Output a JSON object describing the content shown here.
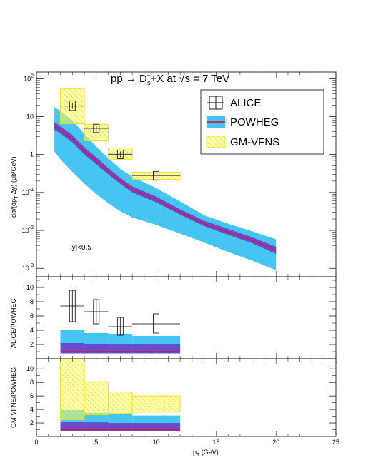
{
  "chart_data": {
    "type": "line",
    "title": "pp → D",
    "title_sup": "+",
    "title_sub": "s",
    "title_rest": "+X at ",
    "title_sqrt": "√s",
    "title_end": " = 7 TeV",
    "xlabel": "p",
    "xlabel_sub": "T",
    "xlabel_unit": " (GeV)",
    "ylabel_top": "dσ/(dp",
    "ylabel_top_sub": "T",
    "ylabel_top_rest": " Δy) (μb/GeV)",
    "ylabel_mid": "ALICE/POWHEG",
    "ylabel_bot": "GM-VFNS/POWHEG",
    "annotation": "|y|<0.5",
    "xlim": [
      0,
      25
    ],
    "x_ticks": [
      "0",
      "5",
      "10",
      "15",
      "20",
      "25"
    ],
    "top_panel": {
      "ylim_log": [
        0.0006,
        150
      ],
      "y_ticks": [
        {
          "v": 0.001,
          "b": "10",
          "e": "-3"
        },
        {
          "v": 0.01,
          "b": "10",
          "e": "-2"
        },
        {
          "v": 0.1,
          "b": "10",
          "e": "-1"
        },
        {
          "v": 1,
          "b": "1",
          "e": ""
        },
        {
          "v": 10,
          "b": "10",
          "e": ""
        },
        {
          "v": 100,
          "b": "10",
          "e": "2"
        }
      ],
      "powheg_central": {
        "x": [
          1.5,
          2,
          3,
          4,
          5,
          6,
          7,
          8,
          10,
          12,
          14,
          16,
          18,
          20
        ],
        "y": [
          5.8,
          4.5,
          2.6,
          1.25,
          0.68,
          0.36,
          0.2,
          0.12,
          0.065,
          0.03,
          0.015,
          0.009,
          0.0055,
          0.003
        ]
      },
      "powheg_inner": {
        "x": [
          1.5,
          2,
          3,
          4,
          5,
          6,
          7,
          8,
          10,
          12,
          14,
          16,
          18,
          20
        ],
        "lo": [
          4.5,
          3.6,
          2.1,
          1.0,
          0.55,
          0.3,
          0.17,
          0.1,
          0.055,
          0.026,
          0.013,
          0.0077,
          0.0046,
          0.0024
        ],
        "hi": [
          7.2,
          5.6,
          3.3,
          1.55,
          0.85,
          0.44,
          0.24,
          0.145,
          0.078,
          0.036,
          0.018,
          0.011,
          0.0066,
          0.0037
        ]
      },
      "powheg_outer": {
        "x": [
          1.5,
          2,
          3,
          4,
          5,
          6,
          7,
          8,
          10,
          12,
          14,
          16,
          18,
          20
        ],
        "lo": [
          1.2,
          0.75,
          0.35,
          0.17,
          0.09,
          0.052,
          0.032,
          0.022,
          0.014,
          0.0082,
          0.0048,
          0.0027,
          0.0016,
          0.0009
        ],
        "hi": [
          18,
          14,
          8,
          3.5,
          1.6,
          0.8,
          0.42,
          0.26,
          0.13,
          0.058,
          0.025,
          0.015,
          0.0095,
          0.0058
        ]
      },
      "alice": [
        {
          "xlo": 2,
          "xhi": 4,
          "x": 3,
          "y": 19,
          "ylo": 14.5,
          "yhi": 26,
          "statlo": 16,
          "stathi": 23
        },
        {
          "xlo": 4,
          "xhi": 6,
          "x": 5,
          "y": 4.9,
          "ylo": 3.8,
          "yhi": 6.3,
          "statlo": 4.2,
          "stathi": 5.7
        },
        {
          "xlo": 6,
          "xhi": 8,
          "x": 7,
          "y": 1.02,
          "ylo": 0.78,
          "yhi": 1.3,
          "statlo": 0.85,
          "stathi": 1.2
        },
        {
          "xlo": 8,
          "xhi": 12,
          "x": 10,
          "y": 0.28,
          "ylo": 0.21,
          "yhi": 0.36,
          "statlo": 0.23,
          "stathi": 0.33
        }
      ],
      "gmvfns": [
        {
          "xlo": 2,
          "xhi": 4,
          "lo": 6.5,
          "hi": 55
        },
        {
          "xlo": 4,
          "xhi": 6,
          "lo": 2.4,
          "hi": 6.3
        },
        {
          "xlo": 6,
          "xhi": 8,
          "lo": 0.75,
          "hi": 1.5
        },
        {
          "xlo": 8,
          "xhi": 12,
          "lo": 0.22,
          "hi": 0.34
        }
      ]
    },
    "mid_panel": {
      "ylim": [
        0,
        11.5
      ],
      "y_ticks": [
        "2",
        "4",
        "6",
        "8",
        "10"
      ],
      "alice": [
        {
          "xlo": 2,
          "xhi": 4,
          "x": 3,
          "y": 7.4,
          "ylo": 5.2,
          "yhi": 9.6
        },
        {
          "xlo": 4,
          "xhi": 6,
          "x": 5,
          "y": 6.6,
          "ylo": 4.9,
          "yhi": 8.3
        },
        {
          "xlo": 6,
          "xhi": 8,
          "x": 7,
          "y": 4.5,
          "ylo": 3.3,
          "yhi": 5.8
        },
        {
          "xlo": 8,
          "xhi": 12,
          "x": 10,
          "y": 4.9,
          "ylo": 3.6,
          "yhi": 6.3
        }
      ],
      "outer": [
        {
          "xlo": 2,
          "xhi": 4,
          "lo": 1.0,
          "hi": 4.0
        },
        {
          "xlo": 4,
          "xhi": 6,
          "lo": 1.0,
          "hi": 3.6
        },
        {
          "xlo": 6,
          "xhi": 8,
          "lo": 1.0,
          "hi": 3.4
        },
        {
          "xlo": 8,
          "xhi": 12,
          "lo": 1.0,
          "hi": 3.2
        }
      ],
      "inner": [
        {
          "xlo": 2,
          "xhi": 4,
          "lo": 0.75,
          "hi": 2.2
        },
        {
          "xlo": 4,
          "xhi": 6,
          "lo": 0.75,
          "hi": 2.1
        },
        {
          "xlo": 6,
          "xhi": 8,
          "lo": 0.75,
          "hi": 2.0
        },
        {
          "xlo": 8,
          "xhi": 12,
          "lo": 0.75,
          "hi": 2.0
        }
      ]
    },
    "bot_panel": {
      "ylim": [
        0,
        11.5
      ],
      "y_ticks": [
        "2",
        "4",
        "6",
        "8",
        "10"
      ],
      "gmvfns": [
        {
          "xlo": 2,
          "xhi": 4,
          "lo": 2.5,
          "hi": 11.5
        },
        {
          "xlo": 4,
          "xhi": 6,
          "lo": 3.2,
          "hi": 8.1
        },
        {
          "xlo": 6,
          "xhi": 8,
          "lo": 3.4,
          "hi": 6.6
        },
        {
          "xlo": 8,
          "xhi": 12,
          "lo": 3.6,
          "hi": 6.0
        }
      ],
      "outer": [
        {
          "xlo": 2,
          "xhi": 4,
          "lo": 1.0,
          "hi": 3.9
        },
        {
          "xlo": 4,
          "xhi": 6,
          "lo": 1.0,
          "hi": 3.5
        },
        {
          "xlo": 6,
          "xhi": 8,
          "lo": 1.0,
          "hi": 3.3
        },
        {
          "xlo": 8,
          "xhi": 12,
          "lo": 1.0,
          "hi": 3.1
        }
      ],
      "inner": [
        {
          "xlo": 2,
          "xhi": 4,
          "lo": 0.75,
          "hi": 2.2
        },
        {
          "xlo": 4,
          "xhi": 6,
          "lo": 0.75,
          "hi": 2.1
        },
        {
          "xlo": 6,
          "xhi": 8,
          "lo": 0.75,
          "hi": 2.0
        },
        {
          "xlo": 8,
          "xhi": 12,
          "lo": 0.75,
          "hi": 2.0
        }
      ]
    },
    "legend": [
      {
        "label": "ALICE",
        "kind": "alice"
      },
      {
        "label": "POWHEG",
        "kind": "powheg"
      },
      {
        "label": "GM-VFNS",
        "kind": "gmvfns"
      }
    ],
    "colors": {
      "powheg_outer": "#45c6f2",
      "powheg_inner": "#6a4bcf",
      "powheg_line": "#cc1f3f",
      "gmvfns_fill": "#ffff66",
      "gmvfns_edge": "#f0e000",
      "alice": "#000000"
    }
  }
}
